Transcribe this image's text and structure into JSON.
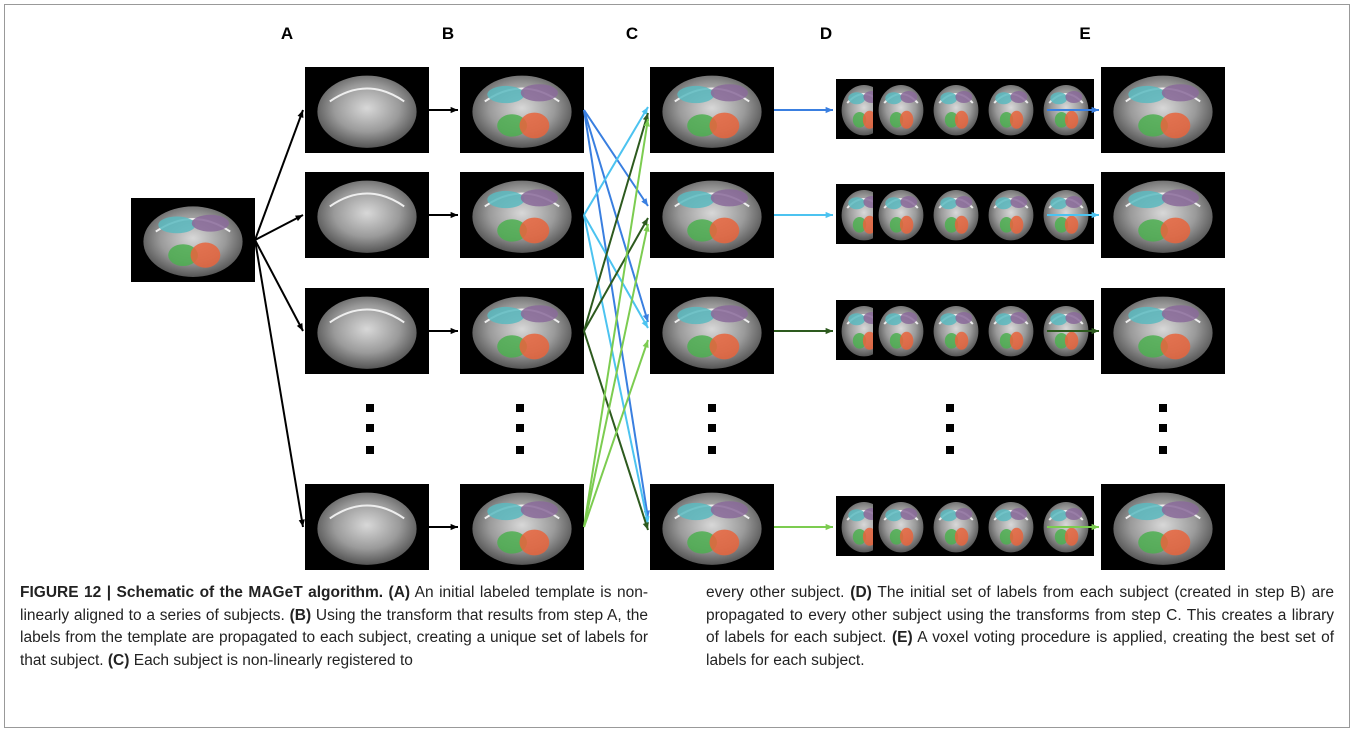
{
  "figure": {
    "column_labels": [
      "A",
      "B",
      "C",
      "D",
      "E"
    ],
    "caption": {
      "left": [
        {
          "text": "FIGURE 12 | Schematic of the MAGeT algorithm. (A)",
          "bold": true
        },
        {
          "text": " An initial labeled template is non-linearly aligned to a series of subjects. ",
          "bold": false
        },
        {
          "text": "(B)",
          "bold": true
        },
        {
          "text": " Using the transform that results from step A, the labels from the template are propagated to each subject, creating a unique set of labels for that subject. ",
          "bold": false
        },
        {
          "text": "(C)",
          "bold": true
        },
        {
          "text": " Each subject is non-linearly registered to",
          "bold": false
        }
      ],
      "right": [
        {
          "text": "every other subject. ",
          "bold": false
        },
        {
          "text": "(D)",
          "bold": true
        },
        {
          "text": " The initial set of labels from each subject (created in step B) are propagated to every other subject using the transforms from step C. This creates a library of labels for each subject. ",
          "bold": false
        },
        {
          "text": "(E)",
          "bold": true
        },
        {
          "text": " A voxel voting procedure is applied, creating the best set of labels for each subject.",
          "bold": false
        }
      ]
    }
  }
}
